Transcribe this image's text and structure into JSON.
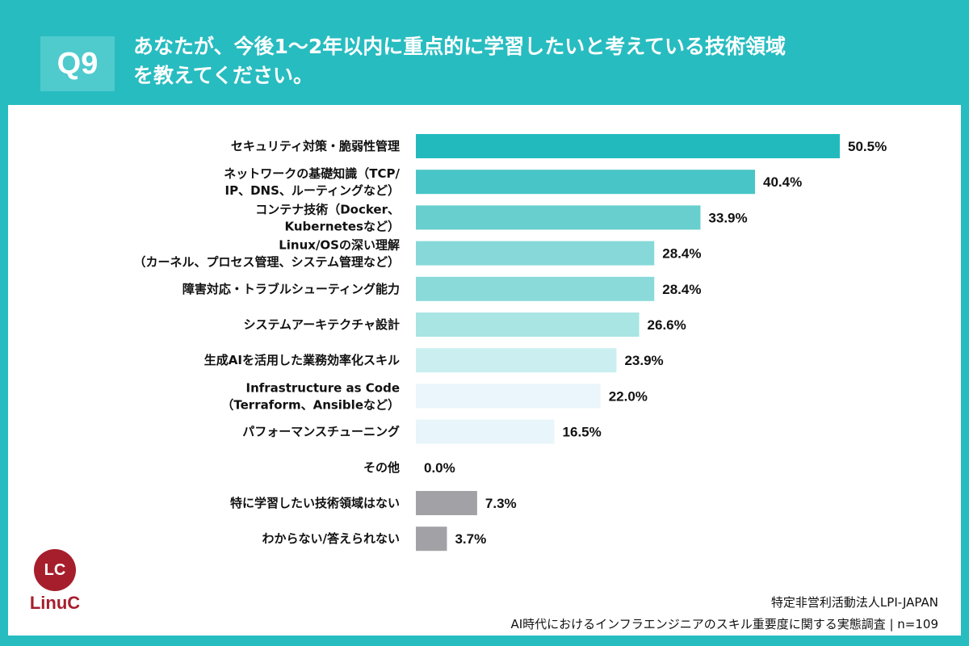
{
  "header": {
    "question_number": "Q9",
    "title_line1": "あなたが、今後1〜2年以内に重点的に学習したいと考えている技術領域",
    "title_line2": "を教えてください。"
  },
  "chart_data": {
    "type": "bar",
    "orientation": "horizontal",
    "title": "あなたが、今後1〜2年以内に重点的に学習したいと考えている技術領域を教えてください。",
    "unit": "%",
    "xlim": [
      0,
      50.5
    ],
    "grid": false,
    "categories": [
      [
        "セキュリティ対策・脆弱性管理"
      ],
      [
        "ネットワークの基礎知識（TCP/",
        "IP、DNS、ルーティングなど）"
      ],
      [
        "コンテナ技術（Docker、",
        "Kubernetesなど）"
      ],
      [
        "Linux/OSの深い理解",
        "（カーネル、プロセス管理、システム管理など）"
      ],
      [
        "障害対応・トラブルシューティング能力"
      ],
      [
        "システムアーキテクチャ設計"
      ],
      [
        "生成AIを活用した業務効率化スキル"
      ],
      [
        "Infrastructure as Code",
        "（Terraform、Ansibleなど）"
      ],
      [
        "パフォーマンスチューニング"
      ],
      [
        "その他"
      ],
      [
        "特に学習したい技術領域はない"
      ],
      [
        "わからない/答えられない"
      ]
    ],
    "values": [
      50.5,
      40.4,
      33.9,
      28.4,
      28.4,
      26.6,
      23.9,
      22.0,
      16.5,
      0.0,
      7.3,
      3.7
    ],
    "value_labels": [
      "50.5%",
      "40.4%",
      "33.9%",
      "28.4%",
      "28.4%",
      "26.6%",
      "23.9%",
      "22.0%",
      "16.5%",
      "0.0%",
      "7.3%",
      "3.7%"
    ],
    "colors": [
      "#22babd",
      "#48c5c7",
      "#68cfce",
      "#86d9d8",
      "#8adada",
      "#a8e5e3",
      "#cbeff0",
      "#eaf6fb",
      "#e8f5fb",
      "#e8f5fb",
      "#a2a2a6",
      "#a2a2a6"
    ]
  },
  "footer": {
    "logo_mark": "LC",
    "logo_word": "LinuC",
    "source_org": "特定非営利活動法人LPI-JAPAN",
    "source_survey": "AI時代におけるインフラエンジニアのスキル重要度に関する実態調査 | n=109"
  },
  "colors": {
    "background": "#27bcc0",
    "panel": "#ffffff",
    "brand": "#a61e2c"
  }
}
